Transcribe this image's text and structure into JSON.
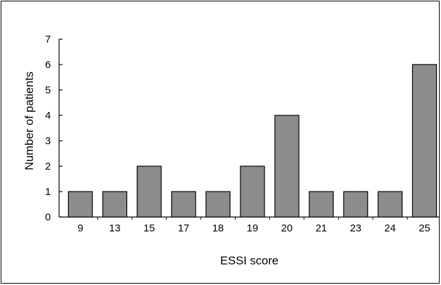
{
  "chart_data": {
    "type": "bar",
    "xlabel": "ESSI score",
    "ylabel": "Number of patients",
    "ylim": [
      0,
      7
    ],
    "yticks": [
      "0",
      "1",
      "2",
      "3",
      "4",
      "5",
      "6",
      "7"
    ],
    "categories": [
      "9",
      "13",
      "15",
      "17",
      "18",
      "19",
      "20",
      "21",
      "23",
      "24",
      "25"
    ],
    "values": [
      1,
      1,
      2,
      1,
      1,
      2,
      4,
      1,
      1,
      1,
      6
    ],
    "grid": false,
    "colors": {
      "bar_fill": "#8c8c8c",
      "bar_stroke": "#000000",
      "axis": "#000000"
    }
  }
}
